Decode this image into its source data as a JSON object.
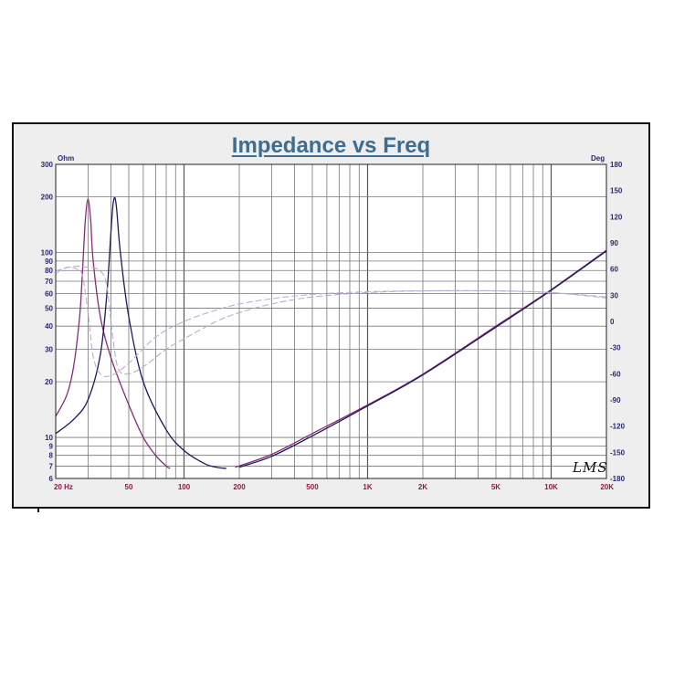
{
  "chart_data": {
    "type": "line",
    "title": "Impedance vs Freq",
    "left_axis_unit": "Ohm",
    "right_axis_unit": "Deg",
    "x_scale": "log",
    "y_scale_left": "log",
    "xlim": [
      20,
      20000
    ],
    "ylim_left": [
      6,
      300
    ],
    "ylim_right": [
      -180,
      180
    ],
    "x_ticks": [
      {
        "value": 20,
        "label": "20  Hz"
      },
      {
        "value": 50,
        "label": "50"
      },
      {
        "value": 100,
        "label": "100"
      },
      {
        "value": 200,
        "label": "200"
      },
      {
        "value": 500,
        "label": "500"
      },
      {
        "value": 1000,
        "label": "1K"
      },
      {
        "value": 2000,
        "label": "2K"
      },
      {
        "value": 5000,
        "label": "5K"
      },
      {
        "value": 10000,
        "label": "10K"
      },
      {
        "value": 20000,
        "label": "20K"
      }
    ],
    "y_ticks_left": [
      {
        "value": 300,
        "label": "300"
      },
      {
        "value": 200,
        "label": "200"
      },
      {
        "value": 100,
        "label": "100"
      },
      {
        "value": 90,
        "label": "90"
      },
      {
        "value": 80,
        "label": "80"
      },
      {
        "value": 70,
        "label": "70"
      },
      {
        "value": 60,
        "label": "60"
      },
      {
        "value": 50,
        "label": "50"
      },
      {
        "value": 40,
        "label": "40"
      },
      {
        "value": 30,
        "label": "30"
      },
      {
        "value": 20,
        "label": "20"
      },
      {
        "value": 10,
        "label": "10"
      },
      {
        "value": 9,
        "label": "9"
      },
      {
        "value": 8,
        "label": "8"
      },
      {
        "value": 7,
        "label": "7"
      },
      {
        "value": 6,
        "label": "6"
      }
    ],
    "y_ticks_right": [
      {
        "value": 180,
        "label": "180"
      },
      {
        "value": 150,
        "label": "150"
      },
      {
        "value": 120,
        "label": "120"
      },
      {
        "value": 90,
        "label": "90"
      },
      {
        "value": 60,
        "label": "60"
      },
      {
        "value": 30,
        "label": "30"
      },
      {
        "value": 0,
        "label": "0"
      },
      {
        "value": -30,
        "label": "-30"
      },
      {
        "value": -60,
        "label": "-60"
      },
      {
        "value": -90,
        "label": "-90"
      },
      {
        "value": -120,
        "label": "-120"
      },
      {
        "value": -150,
        "label": "-150"
      },
      {
        "value": -180,
        "label": "-180"
      }
    ],
    "grid": true,
    "series": [
      {
        "axis": "left",
        "style": "solid",
        "color": "#8a2a7a",
        "points": [
          [
            20,
            13
          ],
          [
            23,
            17
          ],
          [
            25,
            24
          ],
          [
            27,
            45
          ],
          [
            28,
            80
          ],
          [
            29,
            150
          ],
          [
            30,
            195
          ],
          [
            31,
            150
          ],
          [
            32,
            90
          ],
          [
            35,
            45
          ],
          [
            40,
            27
          ],
          [
            50,
            15
          ],
          [
            60,
            10
          ],
          [
            70,
            8
          ],
          [
            80,
            7
          ],
          [
            84,
            6.8
          ]
        ]
      },
      {
        "axis": "left",
        "style": "solid",
        "color": "#1e1a5a",
        "points": [
          [
            20,
            10.5
          ],
          [
            25,
            12.5
          ],
          [
            30,
            16
          ],
          [
            35,
            28
          ],
          [
            38,
            60
          ],
          [
            40,
            130
          ],
          [
            41,
            180
          ],
          [
            42,
            198
          ],
          [
            43,
            170
          ],
          [
            45,
            100
          ],
          [
            50,
            45
          ],
          [
            60,
            20
          ],
          [
            80,
            11
          ],
          [
            100,
            8.5
          ],
          [
            130,
            7.2
          ],
          [
            150,
            6.9
          ],
          [
            170,
            6.8
          ]
        ]
      },
      {
        "axis": "left",
        "style": "solid",
        "color": "#8a2a7a",
        "points": [
          [
            190,
            6.9
          ],
          [
            300,
            8.1
          ],
          [
            500,
            10.5
          ],
          [
            1000,
            15
          ],
          [
            2000,
            22
          ],
          [
            5000,
            40
          ],
          [
            10000,
            63
          ],
          [
            20000,
            103
          ]
        ]
      },
      {
        "axis": "left",
        "style": "solid",
        "color": "#1e1a5a",
        "points": [
          [
            200,
            6.9
          ],
          [
            300,
            7.9
          ],
          [
            500,
            10.2
          ],
          [
            1000,
            14.8
          ],
          [
            2000,
            21.8
          ],
          [
            5000,
            39.5
          ],
          [
            10000,
            62.5
          ],
          [
            20000,
            102
          ]
        ]
      },
      {
        "axis": "right",
        "style": "dashed",
        "color": "#c8a8d8",
        "points": [
          [
            20,
            55
          ],
          [
            23,
            62
          ],
          [
            26,
            60
          ],
          [
            28,
            52
          ],
          [
            30,
            10
          ],
          [
            32,
            -40
          ],
          [
            35,
            -60
          ],
          [
            40,
            -62
          ],
          [
            50,
            -48
          ],
          [
            70,
            -18
          ],
          [
            100,
            0
          ],
          [
            150,
            13
          ],
          [
            200,
            20
          ],
          [
            300,
            26
          ],
          [
            500,
            31
          ],
          [
            1000,
            34
          ],
          [
            2000,
            35
          ],
          [
            5000,
            35
          ],
          [
            10000,
            33
          ],
          [
            20000,
            27
          ]
        ]
      },
      {
        "axis": "right",
        "style": "dashed",
        "color": "#b0b0c8",
        "points": [
          [
            20,
            58
          ],
          [
            25,
            63
          ],
          [
            30,
            62
          ],
          [
            35,
            58
          ],
          [
            38,
            40
          ],
          [
            41,
            -20
          ],
          [
            44,
            -55
          ],
          [
            50,
            -60
          ],
          [
            60,
            -52
          ],
          [
            80,
            -32
          ],
          [
            100,
            -20
          ],
          [
            150,
            0
          ],
          [
            200,
            10
          ],
          [
            300,
            20
          ],
          [
            500,
            28
          ],
          [
            1000,
            33
          ],
          [
            2000,
            35
          ],
          [
            5000,
            35
          ],
          [
            10000,
            33
          ],
          [
            20000,
            28
          ]
        ]
      }
    ]
  },
  "watermark": "LMS"
}
